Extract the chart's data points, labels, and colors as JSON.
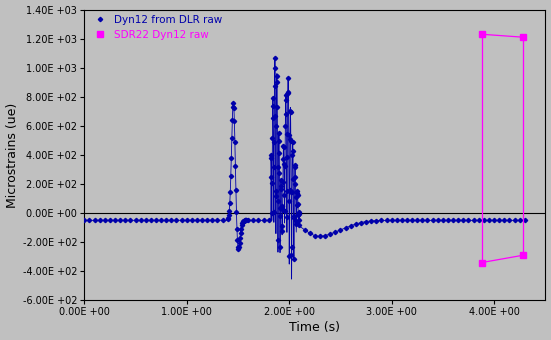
{
  "title": "",
  "xlabel": "Time (s)",
  "ylabel": "Microstrains (ue)",
  "xlim": [
    0.0,
    4.5
  ],
  "ylim": [
    -600,
    1400
  ],
  "yticks": [
    -600,
    -400,
    -200,
    0,
    200,
    400,
    600,
    800,
    1000,
    1200,
    1400
  ],
  "xticks": [
    0.0,
    1.0,
    2.0,
    3.0,
    4.0
  ],
  "background_color": "#c0c0c0",
  "line1_color": "#0000aa",
  "line2_color": "#ff00ff",
  "legend_labels": [
    "Dyn12 from DLR raw",
    "SDR22 Dyn12 raw"
  ],
  "baseline": -50,
  "sdr_x1": 3.88,
  "sdr_x2": 4.28,
  "sdr_peak1": 1230,
  "sdr_peak2": 1210,
  "sdr_trough1": -340,
  "sdr_trough2": -290
}
